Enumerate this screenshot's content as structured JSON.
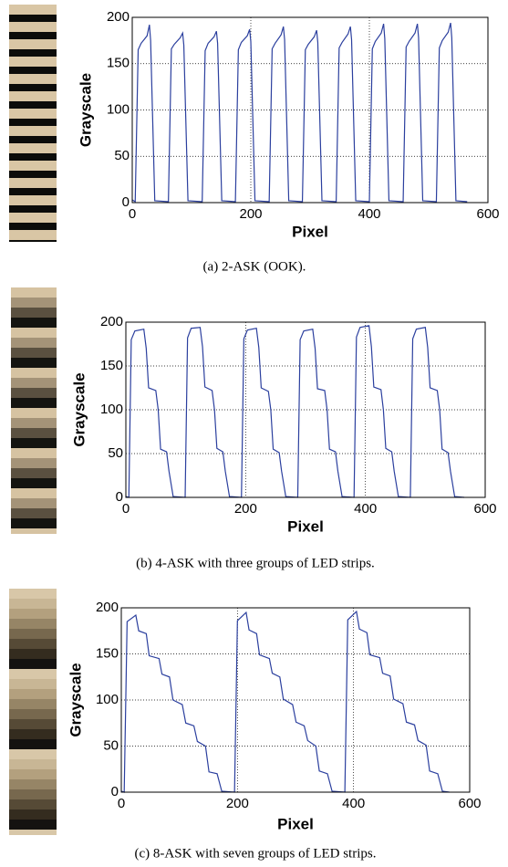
{
  "chart_data": [
    {
      "type": "line",
      "caption": "(a) 2-ASK (OOK).",
      "x_label": "Pixel",
      "y_label": "Grayscale",
      "color": "#2b3f9e",
      "grid": true,
      "xlim": [
        0,
        600
      ],
      "xticks": [
        0,
        200,
        400,
        600
      ],
      "ylim": [
        0,
        200
      ],
      "yticks": [
        0,
        50,
        100,
        150,
        200
      ],
      "x": [
        0,
        5,
        10,
        15,
        25,
        29,
        31,
        38,
        61,
        66,
        71,
        81,
        85,
        87,
        94,
        118,
        123,
        128,
        138,
        142,
        144,
        151,
        174,
        179,
        184,
        194,
        198,
        200,
        207,
        231,
        236,
        241,
        251,
        255,
        257,
        264,
        287,
        292,
        297,
        307,
        311,
        313,
        320,
        344,
        349,
        354,
        364,
        368,
        370,
        377,
        400,
        405,
        410,
        420,
        424,
        426,
        433,
        457,
        462,
        467,
        477,
        481,
        483,
        490,
        513,
        518,
        523,
        533,
        537,
        539,
        546,
        565
      ],
      "values": [
        3,
        1,
        165,
        172,
        180,
        192,
        175,
        2,
        1,
        166,
        171,
        178,
        183,
        170,
        2,
        1,
        164,
        172,
        179,
        185,
        172,
        2,
        1,
        165,
        173,
        180,
        187,
        174,
        2,
        1,
        166,
        172,
        181,
        190,
        176,
        2,
        1,
        165,
        171,
        179,
        186,
        173,
        2,
        1,
        167,
        173,
        182,
        190,
        176,
        2,
        1,
        166,
        174,
        183,
        193,
        177,
        2,
        1,
        168,
        174,
        183,
        193,
        178,
        2,
        1,
        167,
        175,
        184,
        194,
        178,
        2,
        1
      ]
    },
    {
      "type": "line",
      "caption": "(b) 4-ASK with three groups of LED strips.",
      "x_label": "Pixel",
      "y_label": "Grayscale",
      "color": "#2b3f9e",
      "grid": true,
      "xlim": [
        0,
        600
      ],
      "xticks": [
        0,
        200,
        400,
        600
      ],
      "ylim": [
        0,
        200
      ],
      "yticks": [
        0,
        50,
        100,
        150,
        200
      ],
      "x": [
        0,
        5,
        9,
        15,
        30,
        34,
        38,
        50,
        54,
        58,
        68,
        72,
        79,
        99,
        103,
        109,
        124,
        128,
        132,
        144,
        148,
        152,
        162,
        166,
        173,
        193,
        197,
        203,
        218,
        222,
        226,
        238,
        242,
        246,
        256,
        260,
        267,
        287,
        291,
        297,
        312,
        316,
        320,
        332,
        336,
        340,
        350,
        354,
        361,
        381,
        385,
        391,
        406,
        410,
        414,
        426,
        430,
        434,
        444,
        448,
        455,
        475,
        479,
        485,
        500,
        504,
        508,
        520,
        524,
        528,
        538,
        542,
        549,
        565
      ],
      "values": [
        1,
        0,
        180,
        190,
        192,
        170,
        125,
        122,
        100,
        55,
        52,
        30,
        1,
        0,
        182,
        193,
        194,
        172,
        126,
        122,
        100,
        56,
        52,
        30,
        1,
        0,
        181,
        191,
        193,
        171,
        125,
        121,
        100,
        55,
        51,
        30,
        1,
        0,
        180,
        190,
        192,
        170,
        124,
        122,
        100,
        55,
        52,
        30,
        1,
        0,
        183,
        194,
        196,
        172,
        126,
        123,
        100,
        56,
        52,
        30,
        1,
        0,
        181,
        192,
        194,
        171,
        125,
        122,
        100,
        55,
        51,
        30,
        1,
        0
      ]
    },
    {
      "type": "line",
      "caption": "(c) 8-ASK with seven groups of LED strips.",
      "x_label": "Pixel",
      "y_label": "Grayscale",
      "color": "#2b3f9e",
      "grid": true,
      "xlim": [
        0,
        600
      ],
      "xticks": [
        0,
        200,
        400,
        600
      ],
      "ylim": [
        0,
        200
      ],
      "yticks": [
        0,
        50,
        100,
        150,
        200
      ],
      "x": [
        0,
        5,
        10,
        25,
        30,
        43,
        48,
        65,
        70,
        83,
        89,
        105,
        111,
        125,
        131,
        145,
        151,
        165,
        173,
        195,
        200,
        215,
        220,
        233,
        238,
        255,
        260,
        273,
        279,
        295,
        301,
        315,
        321,
        335,
        341,
        355,
        363,
        385,
        390,
        405,
        410,
        423,
        428,
        445,
        450,
        463,
        469,
        485,
        491,
        505,
        511,
        525,
        531,
        545,
        553,
        565
      ],
      "values": [
        1,
        0,
        185,
        192,
        175,
        172,
        148,
        145,
        128,
        125,
        100,
        95,
        75,
        72,
        55,
        50,
        22,
        20,
        1,
        0,
        186,
        195,
        176,
        172,
        149,
        145,
        129,
        125,
        101,
        95,
        76,
        72,
        56,
        50,
        23,
        20,
        1,
        0,
        187,
        196,
        177,
        173,
        149,
        146,
        129,
        126,
        101,
        96,
        76,
        73,
        56,
        51,
        23,
        20,
        1,
        0
      ]
    }
  ]
}
